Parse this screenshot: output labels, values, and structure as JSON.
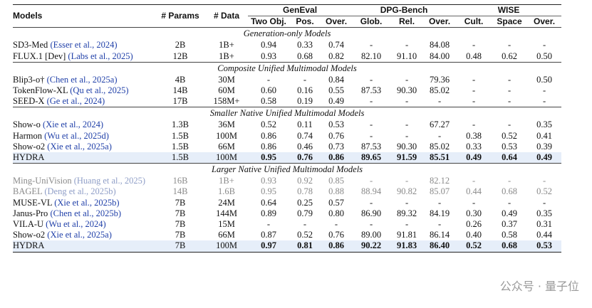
{
  "header": {
    "models": "Models",
    "params": "# Params",
    "data": "# Data",
    "groups": [
      "GenEval",
      "DPG-Bench",
      "WISE"
    ],
    "subcols": [
      "Two Obj.",
      "Pos.",
      "Over.",
      "Glob.",
      "Rel.",
      "Over.",
      "Cult.",
      "Space",
      "Over."
    ]
  },
  "sections": [
    {
      "title": "Generation-only Models",
      "rows": [
        {
          "name": "SD3-Med",
          "cite": "(Esser et al., 2024)",
          "params": "2B",
          "data": "1B+",
          "vals": [
            "0.94",
            "0.33",
            "0.74",
            "-",
            "-",
            "84.08",
            "-",
            "-",
            "-"
          ]
        },
        {
          "name": "FLUX.1 [Dev]",
          "cite": "(Labs et al., 2025)",
          "params": "12B",
          "data": "1B+",
          "vals": [
            "0.93",
            "0.68",
            "0.82",
            "82.10",
            "91.10",
            "84.00",
            "0.48",
            "0.62",
            "0.50"
          ]
        }
      ]
    },
    {
      "title": "Composite Unified Multimodal Models",
      "rows": [
        {
          "name": "Blip3-o†",
          "cite": "(Chen et al., 2025a)",
          "params": "4B",
          "data": "30M",
          "vals": [
            "-",
            "-",
            "0.84",
            "-",
            "-",
            "79.36",
            "-",
            "-",
            "0.50"
          ]
        },
        {
          "name": "TokenFlow-XL",
          "cite": "(Qu et al., 2025)",
          "params": "14B",
          "data": "60M",
          "vals": [
            "0.60",
            "0.16",
            "0.55",
            "87.53",
            "90.30",
            "85.02",
            "-",
            "-",
            "-"
          ]
        },
        {
          "name": "SEED-X",
          "cite": "(Ge et al., 2024)",
          "params": "17B",
          "data": "158M+",
          "vals": [
            "0.58",
            "0.19",
            "0.49",
            "-",
            "-",
            "-",
            "-",
            "-",
            "-"
          ]
        }
      ]
    },
    {
      "title": "Smaller Native Unified Multimodal Models",
      "rows": [
        {
          "name": "Show-o",
          "cite": "(Xie et al., 2024)",
          "params": "1.3B",
          "data": "36M",
          "vals": [
            "0.52",
            "0.11",
            "0.53",
            "-",
            "-",
            "67.27",
            "-",
            "-",
            "0.35"
          ]
        },
        {
          "name": "Harmon",
          "cite": "(Wu et al., 2025d)",
          "params": "1.5B",
          "data": "100M",
          "vals": [
            "0.86",
            "0.74",
            "0.76",
            "-",
            "-",
            "-",
            "0.38",
            "0.52",
            "0.41"
          ]
        },
        {
          "name": "Show-o2",
          "cite": "(Xie et al., 2025a)",
          "params": "1.5B",
          "data": "66M",
          "vals": [
            "0.86",
            "0.46",
            "0.73",
            "87.53",
            "90.30",
            "85.02",
            "0.33",
            "0.53",
            "0.39"
          ]
        },
        {
          "name": "HYDRA",
          "cite": "",
          "params": "1.5B",
          "data": "100M",
          "vals": [
            "0.95",
            "0.76",
            "0.86",
            "89.65",
            "91.59",
            "85.51",
            "0.49",
            "0.64",
            "0.49"
          ]
        }
      ]
    },
    {
      "title": "Larger Native Unified Multimodal Models",
      "rows": [
        {
          "name": "Ming-UniVision",
          "cite": "(Huang et al., 2025)",
          "params": "16B",
          "data": "1B+",
          "vals": [
            "0.93",
            "0.92",
            "0.85",
            "-",
            "-",
            "82.12",
            "-",
            "-",
            "-"
          ]
        },
        {
          "name": "BAGEL",
          "cite": "(Deng et al., 2025b)",
          "params": "14B",
          "data": "1.6B",
          "vals": [
            "0.95",
            "0.78",
            "0.88",
            "88.94",
            "90.82",
            "85.07",
            "0.44",
            "0.68",
            "0.52"
          ]
        },
        {
          "name": "MUSE-VL",
          "cite": "(Xie et al., 2025b)",
          "params": "7B",
          "data": "24M",
          "vals": [
            "0.64",
            "0.25",
            "0.57",
            "-",
            "-",
            "-",
            "-",
            "-",
            "-"
          ]
        },
        {
          "name": "Janus-Pro",
          "cite": "(Chen et al., 2025b)",
          "params": "7B",
          "data": "144M",
          "vals": [
            "0.89",
            "0.79",
            "0.80",
            "86.90",
            "89.32",
            "84.19",
            "0.30",
            "0.49",
            "0.35"
          ]
        },
        {
          "name": "VILA-U",
          "cite": "(Wu et al., 2024)",
          "params": "7B",
          "data": "15M",
          "vals": [
            "-",
            "-",
            "-",
            "-",
            "-",
            "-",
            "0.26",
            "0.37",
            "0.31"
          ]
        },
        {
          "name": "Show-o2",
          "cite": "(Xie et al., 2025a)",
          "params": "7B",
          "data": "66M",
          "vals": [
            "0.87",
            "0.52",
            "0.76",
            "89.00",
            "91.81",
            "86.14",
            "0.40",
            "0.58",
            "0.44"
          ]
        },
        {
          "name": "HYDRA",
          "cite": "",
          "params": "7B",
          "data": "100M",
          "vals": [
            "0.97",
            "0.81",
            "0.86",
            "90.22",
            "91.83",
            "86.40",
            "0.52",
            "0.68",
            "0.53"
          ]
        }
      ]
    }
  ],
  "watermark": "公众号 · 量子位"
}
